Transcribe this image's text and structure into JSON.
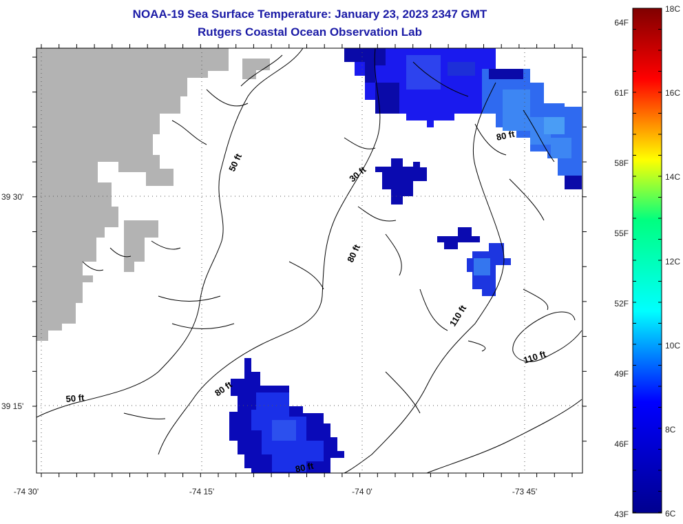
{
  "header": {
    "title": "NOAA-19 Sea Surface Temperature:  January 23, 2023 2347 GMT",
    "subtitle": "Rutgers Coastal Ocean Observation Lab"
  },
  "map": {
    "x_tick_labels": [
      "-74 30'",
      "-74 15'",
      "-74 0'",
      "-73 45'"
    ],
    "y_tick_labels": [
      "39 30'",
      "39 15'"
    ],
    "depth_labels": [
      "50 ft",
      "30 ft",
      "80 ft",
      "110 ft",
      "110 ft",
      "50 ft",
      "80 ft",
      "80 ft",
      "80 ft"
    ],
    "land_color": "#b3b3b3",
    "ocean_color": "#ffffff"
  },
  "colorbar": {
    "fahrenheit_labels": [
      "64F",
      "61F",
      "58F",
      "55F",
      "52F",
      "49F",
      "46F",
      "43F"
    ],
    "celsius_labels": [
      "18C",
      "16C",
      "14C",
      "12C",
      "10C",
      "8C",
      "6C"
    ],
    "colors": [
      "#00008f",
      "#0000ff",
      "#00ffff",
      "#ffff00",
      "#ff0000",
      "#800000"
    ]
  }
}
